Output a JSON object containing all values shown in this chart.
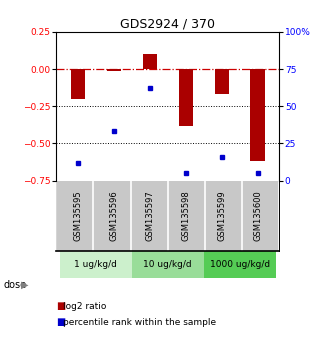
{
  "title": "GDS2924 / 370",
  "samples": [
    "GSM135595",
    "GSM135596",
    "GSM135597",
    "GSM135598",
    "GSM135599",
    "GSM135600"
  ],
  "log2_ratio": [
    -0.2,
    -0.01,
    0.1,
    -0.38,
    -0.17,
    -0.62
  ],
  "percentile_rank": [
    12,
    33,
    62,
    5,
    16,
    5
  ],
  "ylim_left": [
    -0.75,
    0.25
  ],
  "ylim_right": [
    0,
    100
  ],
  "yticks_left": [
    0.25,
    0,
    -0.25,
    -0.5,
    -0.75
  ],
  "yticks_right": [
    100,
    75,
    50,
    25,
    0
  ],
  "dose_groups": [
    {
      "label": "1 ug/kg/d",
      "start": 0,
      "end": 1,
      "color": "#ccf0cc"
    },
    {
      "label": "10 ug/kg/d",
      "start": 2,
      "end": 3,
      "color": "#99dd99"
    },
    {
      "label": "1000 ug/kg/d",
      "start": 4,
      "end": 5,
      "color": "#55cc55"
    }
  ],
  "bar_color": "#aa0000",
  "dot_color": "#0000cc",
  "hline_color": "#cc0000",
  "dotted_line_color": "#000000",
  "sample_box_color": "#c8c8c8",
  "background_color": "#ffffff",
  "title_fontsize": 9,
  "tick_fontsize": 6.5,
  "legend_fontsize": 6.5
}
